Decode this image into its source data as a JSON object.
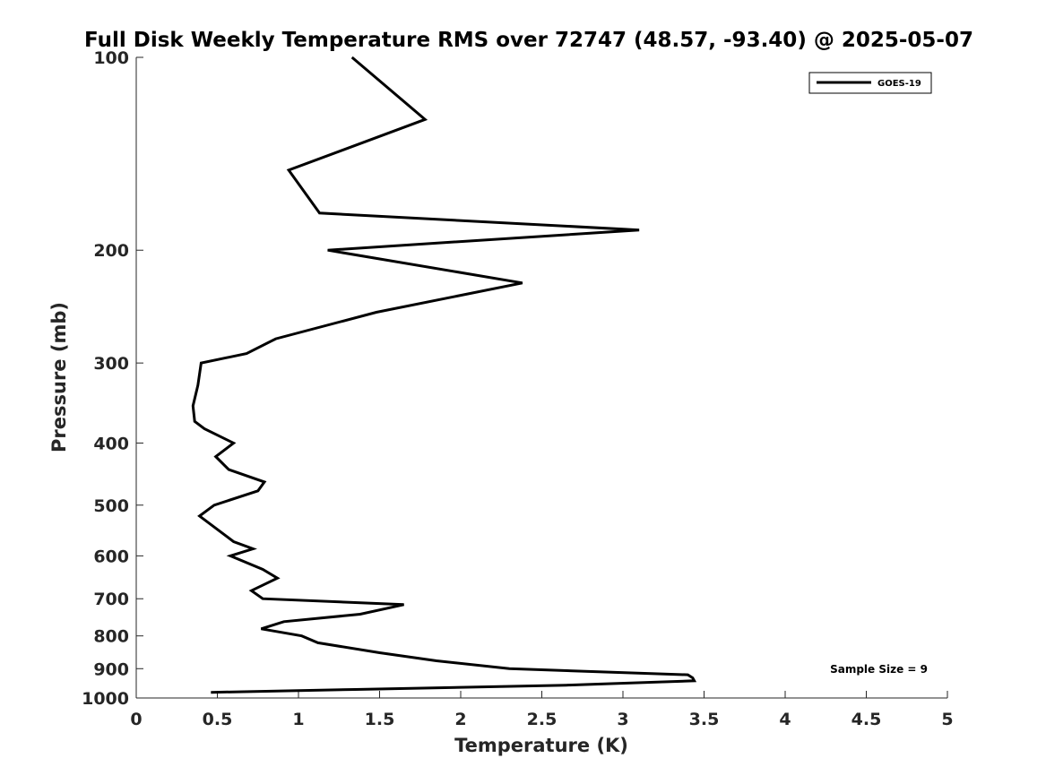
{
  "chart_data": {
    "type": "line",
    "title": "Full Disk Weekly Temperature RMS over 72747 (48.57, -93.40) @ 2025-05-07",
    "xlabel": "Temperature (K)",
    "ylabel": "Pressure (mb)",
    "xlim": [
      0,
      5
    ],
    "ylim": [
      100,
      1000
    ],
    "y_scale": "log",
    "y_reversed": true,
    "grid": false,
    "legend_position": "top-right",
    "x_ticks": [
      0,
      0.5,
      1,
      1.5,
      2,
      2.5,
      3,
      3.5,
      4,
      4.5,
      5
    ],
    "x_tick_labels": [
      "0",
      "0.5",
      "1",
      "1.5",
      "2",
      "2.5",
      "3",
      "3.5",
      "4",
      "4.5",
      "5"
    ],
    "y_ticks": [
      100,
      200,
      300,
      400,
      500,
      600,
      700,
      800,
      900,
      1000
    ],
    "y_tick_labels": [
      "100",
      "200",
      "300",
      "400",
      "500",
      "600",
      "700",
      "800",
      "900",
      "1000"
    ],
    "series": [
      {
        "name": "GOES-19",
        "color": "#000000",
        "points": [
          [
            1.33,
            100
          ],
          [
            1.78,
            125
          ],
          [
            0.94,
            150
          ],
          [
            1.13,
            175
          ],
          [
            3.1,
            186
          ],
          [
            1.18,
            200
          ],
          [
            2.38,
            225
          ],
          [
            1.48,
            250
          ],
          [
            0.86,
            275
          ],
          [
            0.68,
            290
          ],
          [
            0.4,
            300
          ],
          [
            0.38,
            325
          ],
          [
            0.35,
            350
          ],
          [
            0.36,
            370
          ],
          [
            0.42,
            380
          ],
          [
            0.6,
            400
          ],
          [
            0.49,
            420
          ],
          [
            0.57,
            440
          ],
          [
            0.79,
            460
          ],
          [
            0.75,
            475
          ],
          [
            0.48,
            500
          ],
          [
            0.39,
            520
          ],
          [
            0.6,
            570
          ],
          [
            0.72,
            585
          ],
          [
            0.58,
            600
          ],
          [
            0.78,
            630
          ],
          [
            0.87,
            650
          ],
          [
            0.71,
            680
          ],
          [
            0.78,
            700
          ],
          [
            1.65,
            715
          ],
          [
            1.38,
            740
          ],
          [
            0.91,
            760
          ],
          [
            0.77,
            780
          ],
          [
            1.02,
            800
          ],
          [
            1.12,
            820
          ],
          [
            1.5,
            850
          ],
          [
            1.85,
            875
          ],
          [
            2.3,
            900
          ],
          [
            3.4,
            920
          ],
          [
            3.43,
            930
          ],
          [
            3.44,
            940
          ],
          [
            2.65,
            955
          ],
          [
            1.35,
            970
          ],
          [
            0.46,
            980
          ]
        ]
      }
    ],
    "annotations": [
      "Sample Size = 9"
    ]
  }
}
